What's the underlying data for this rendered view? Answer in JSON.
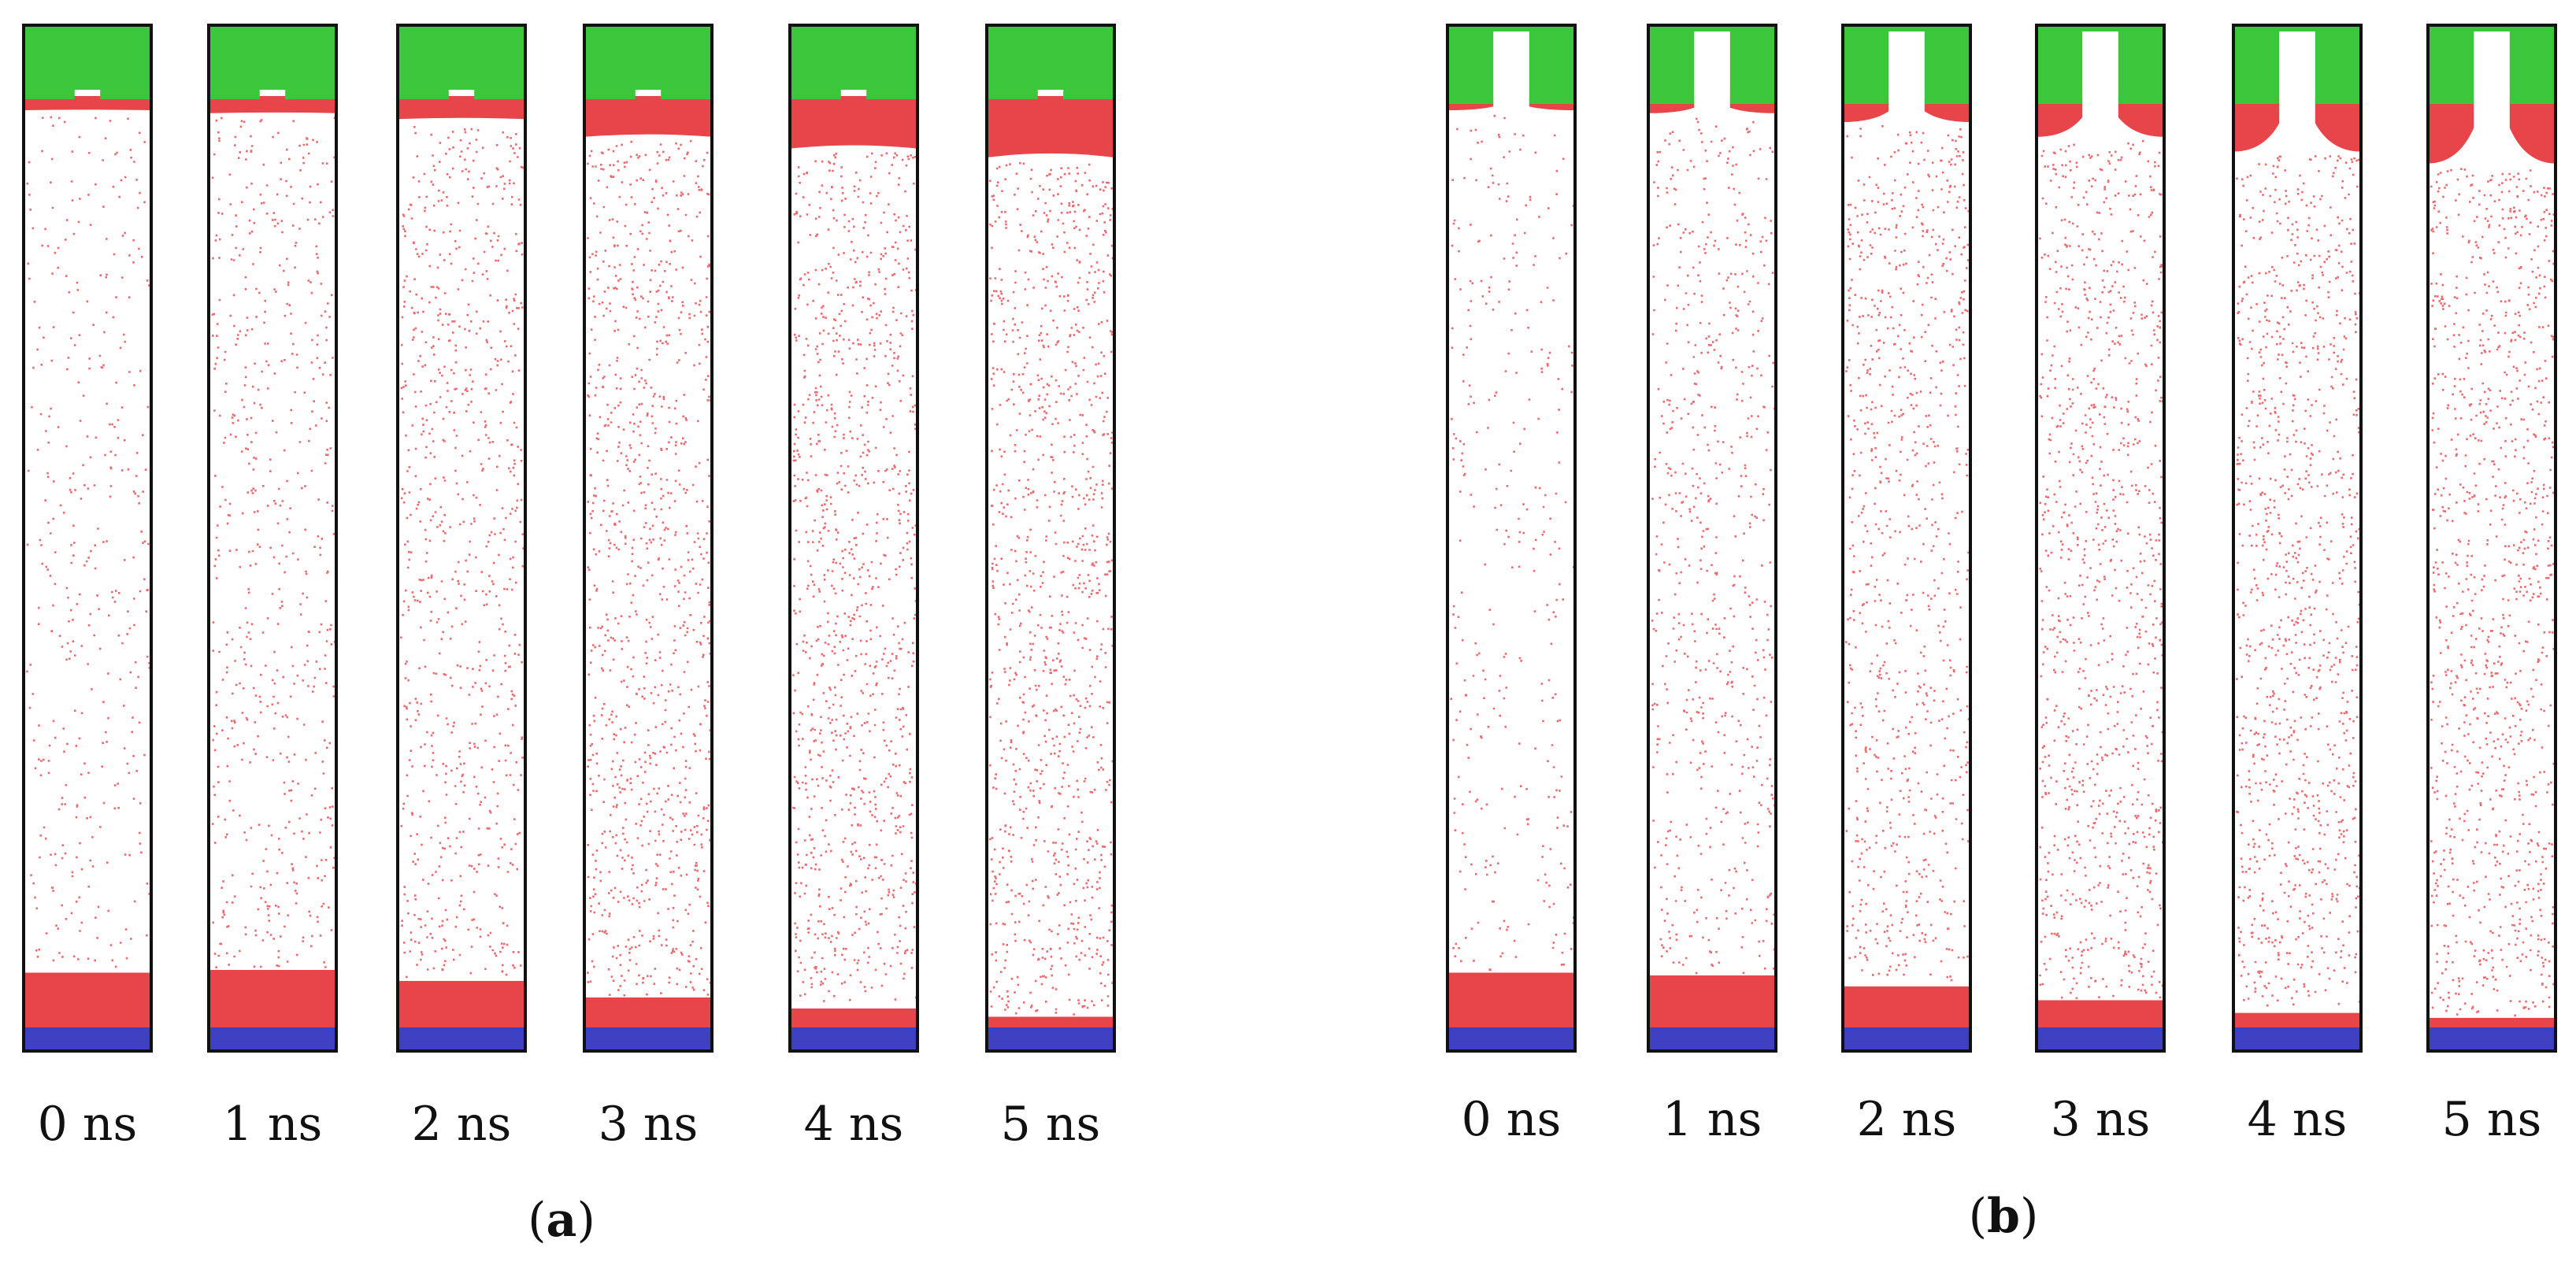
{
  "colors": {
    "top_wall": "#3cc63c",
    "particle": "#e8454b",
    "bottom_wall": "#3f3fc2",
    "border": "#111111",
    "background": "#ffffff"
  },
  "panels": [
    {
      "id": "a",
      "label_open": "(",
      "label_letter": "a",
      "label_close": ")",
      "geometry": "flat-top-with-small-bump",
      "frames": [
        {
          "time": "0 ns",
          "top_layer_fraction": 0.0,
          "bottom_layer_fraction": 0.85,
          "gas_density": 0.35
        },
        {
          "time": "1 ns",
          "top_layer_fraction": 0.05,
          "bottom_layer_fraction": 0.9,
          "gas_density": 0.55
        },
        {
          "time": "2 ns",
          "top_layer_fraction": 0.15,
          "bottom_layer_fraction": 0.7,
          "gas_density": 0.75
        },
        {
          "time": "3 ns",
          "top_layer_fraction": 0.45,
          "bottom_layer_fraction": 0.4,
          "gas_density": 0.95
        },
        {
          "time": "4 ns",
          "top_layer_fraction": 0.65,
          "bottom_layer_fraction": 0.2,
          "gas_density": 1.0
        },
        {
          "time": "5 ns",
          "top_layer_fraction": 0.8,
          "bottom_layer_fraction": 0.05,
          "gas_density": 1.0
        }
      ]
    },
    {
      "id": "b",
      "label_open": "(",
      "label_letter": "b",
      "label_close": ")",
      "geometry": "top-with-narrow-slot",
      "frames": [
        {
          "time": "0 ns",
          "top_layer_fraction": 0.0,
          "bottom_layer_fraction": 0.85,
          "gas_density": 0.3
        },
        {
          "time": "1 ns",
          "top_layer_fraction": 0.05,
          "bottom_layer_fraction": 0.8,
          "gas_density": 0.6
        },
        {
          "time": "2 ns",
          "top_layer_fraction": 0.2,
          "bottom_layer_fraction": 0.6,
          "gas_density": 0.8
        },
        {
          "time": "3 ns",
          "top_layer_fraction": 0.45,
          "bottom_layer_fraction": 0.35,
          "gas_density": 0.95
        },
        {
          "time": "4 ns",
          "top_layer_fraction": 0.7,
          "bottom_layer_fraction": 0.12,
          "gas_density": 1.0
        },
        {
          "time": "5 ns",
          "top_layer_fraction": 0.9,
          "bottom_layer_fraction": 0.03,
          "gas_density": 1.0
        }
      ]
    }
  ]
}
